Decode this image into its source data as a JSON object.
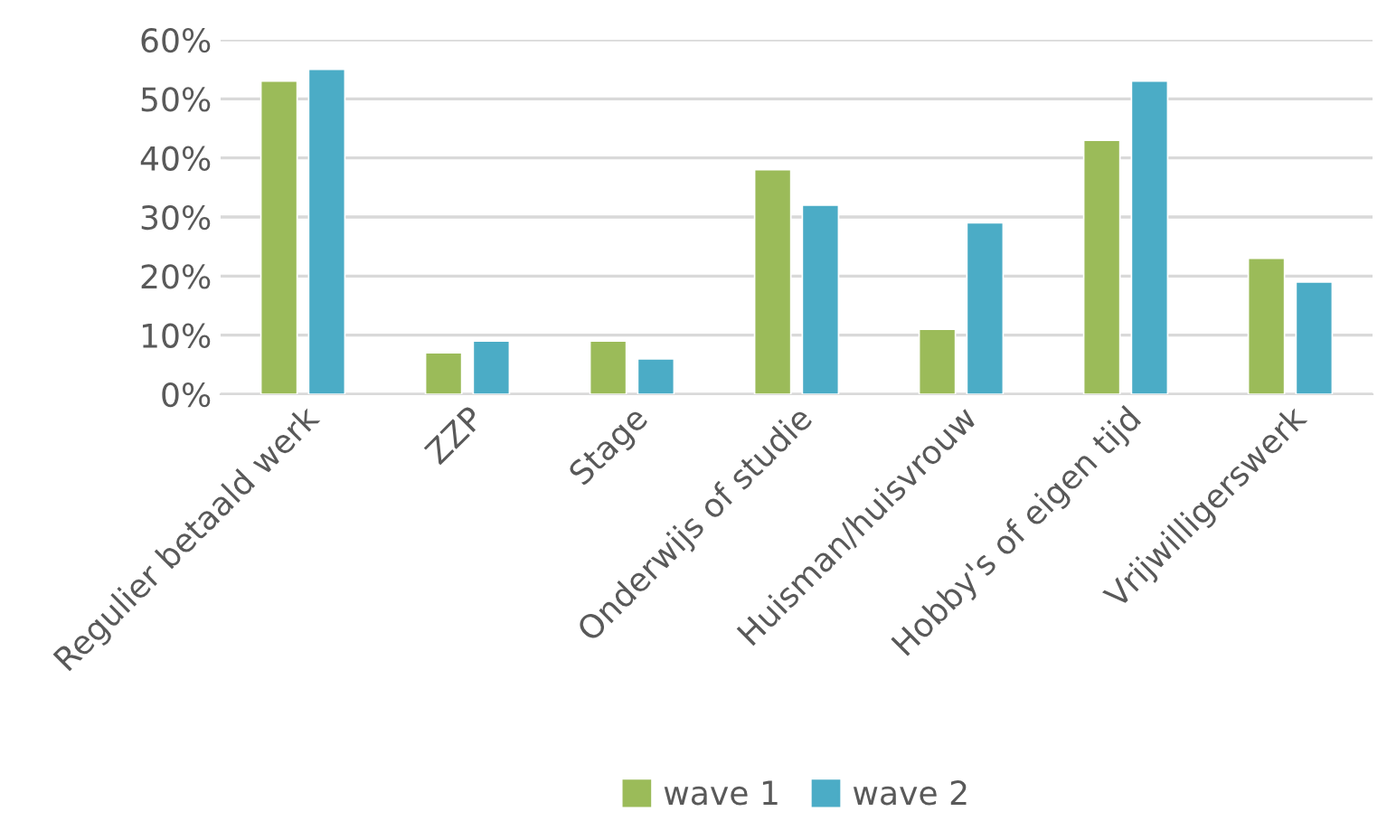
{
  "chart_data": {
    "type": "bar",
    "categories": [
      "Regulier betaald werk",
      "ZZP",
      "Stage",
      "Onderwijs of studie",
      "Huisman/huisvrouw",
      "Hobby's of eigen tijd",
      "Vrijwilligerswerk"
    ],
    "series": [
      {
        "name": "wave 1",
        "color": "#9bbb59",
        "values": [
          53,
          7,
          9,
          38,
          11,
          43,
          23
        ]
      },
      {
        "name": "wave 2",
        "color": "#4bacc6",
        "values": [
          55,
          9,
          6,
          32,
          29,
          53,
          19
        ]
      }
    ],
    "ylim": [
      0,
      60
    ],
    "yticks": [
      {
        "value": 0,
        "label": "0%"
      },
      {
        "value": 10,
        "label": "10%"
      },
      {
        "value": 20,
        "label": "20%"
      },
      {
        "value": 30,
        "label": "30%"
      },
      {
        "value": 40,
        "label": "40%"
      },
      {
        "value": 50,
        "label": "50%"
      },
      {
        "value": 60,
        "label": "60%"
      }
    ],
    "grid": "y",
    "legend": "bottom"
  }
}
